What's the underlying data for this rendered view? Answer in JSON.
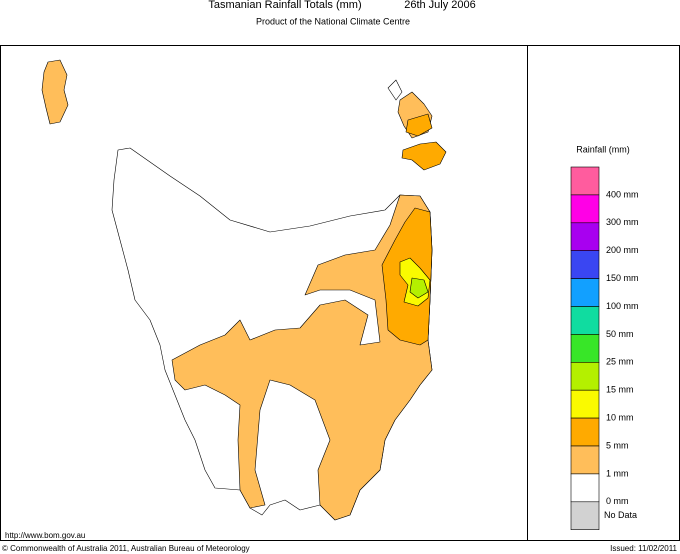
{
  "header": {
    "title": "Tasmanian Rainfall Totals (mm)",
    "date": "26th July 2006",
    "subtitle": "Product of the National Climate Centre"
  },
  "legend": {
    "title": "Rainfall (mm)",
    "colors": [
      "#ff5c9e",
      "#ff00e6",
      "#a800f0",
      "#3a46f2",
      "#12a0ff",
      "#10dca0",
      "#38e628",
      "#b4f000",
      "#fafa00",
      "#ffaa00",
      "#ffbe5a",
      "#ffffff",
      "#d2d2d2"
    ],
    "labels": [
      "400 mm",
      "300 mm",
      "200 mm",
      "150 mm",
      "100 mm",
      "50 mm",
      "25 mm",
      "15 mm",
      "10 mm",
      "5 mm",
      "1 mm",
      "0 mm"
    ],
    "no_data": "No Data"
  },
  "footer": {
    "url": "http://www.bom.gov.au",
    "copyright": "© Commonwealth of Australia 2011, Australian Bureau of Meteorology",
    "issued": "Issued: 11/02/2011"
  }
}
